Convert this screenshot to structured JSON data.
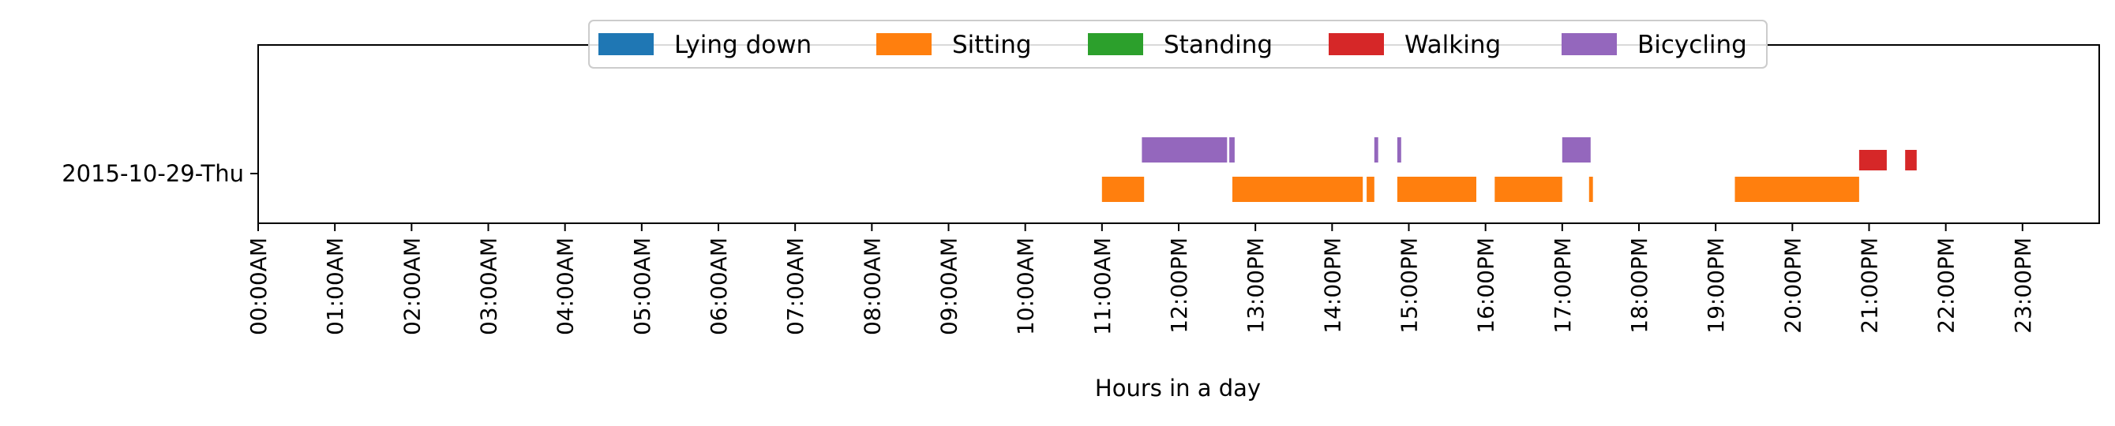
{
  "chart_data": {
    "type": "timeline",
    "xlabel": "Hours in a day",
    "xlim": [
      0,
      24
    ],
    "x_ticks": [
      {
        "value": 0,
        "label": "00:00AM"
      },
      {
        "value": 1,
        "label": "01:00AM"
      },
      {
        "value": 2,
        "label": "02:00AM"
      },
      {
        "value": 3,
        "label": "03:00AM"
      },
      {
        "value": 4,
        "label": "04:00AM"
      },
      {
        "value": 5,
        "label": "05:00AM"
      },
      {
        "value": 6,
        "label": "06:00AM"
      },
      {
        "value": 7,
        "label": "07:00AM"
      },
      {
        "value": 8,
        "label": "08:00AM"
      },
      {
        "value": 9,
        "label": "09:00AM"
      },
      {
        "value": 10,
        "label": "10:00AM"
      },
      {
        "value": 11,
        "label": "11:00AM"
      },
      {
        "value": 12,
        "label": "12:00PM"
      },
      {
        "value": 13,
        "label": "13:00PM"
      },
      {
        "value": 14,
        "label": "14:00PM"
      },
      {
        "value": 15,
        "label": "15:00PM"
      },
      {
        "value": 16,
        "label": "16:00PM"
      },
      {
        "value": 17,
        "label": "17:00PM"
      },
      {
        "value": 18,
        "label": "18:00PM"
      },
      {
        "value": 19,
        "label": "19:00PM"
      },
      {
        "value": 20,
        "label": "20:00PM"
      },
      {
        "value": 21,
        "label": "21:00PM"
      },
      {
        "value": 22,
        "label": "22:00PM"
      },
      {
        "value": 23,
        "label": "23:00PM"
      }
    ],
    "y_categories": [
      "2015-10-29-Thu"
    ],
    "legend": {
      "placement": "top-center",
      "entries": [
        {
          "name": "Lying down",
          "color": "#1f77b4"
        },
        {
          "name": "Sitting",
          "color": "#ff7f0e"
        },
        {
          "name": "Standing",
          "color": "#2ca02c"
        },
        {
          "name": "Walking",
          "color": "#d62728"
        },
        {
          "name": "Bicycling",
          "color": "#9467bd"
        }
      ]
    },
    "series": [
      {
        "name": "Lying down",
        "color": "#1f77b4",
        "intervals": []
      },
      {
        "name": "Sitting",
        "color": "#ff7f0e",
        "intervals": [
          [
            11.0,
            11.55
          ],
          [
            12.7,
            14.4
          ],
          [
            14.45,
            14.55
          ],
          [
            14.85,
            15.88
          ],
          [
            16.12,
            17.0
          ],
          [
            17.35,
            17.4
          ],
          [
            19.25,
            20.87
          ]
        ]
      },
      {
        "name": "Standing",
        "color": "#2ca02c",
        "intervals": []
      },
      {
        "name": "Walking",
        "color": "#d62728",
        "intervals": [
          [
            20.87,
            21.23
          ],
          [
            21.47,
            21.62
          ]
        ]
      },
      {
        "name": "Bicycling",
        "color": "#9467bd",
        "intervals": [
          [
            11.52,
            12.63
          ],
          [
            12.66,
            12.73
          ],
          [
            14.55,
            14.6
          ],
          [
            14.85,
            14.9
          ],
          [
            17.0,
            17.37
          ]
        ]
      }
    ]
  }
}
